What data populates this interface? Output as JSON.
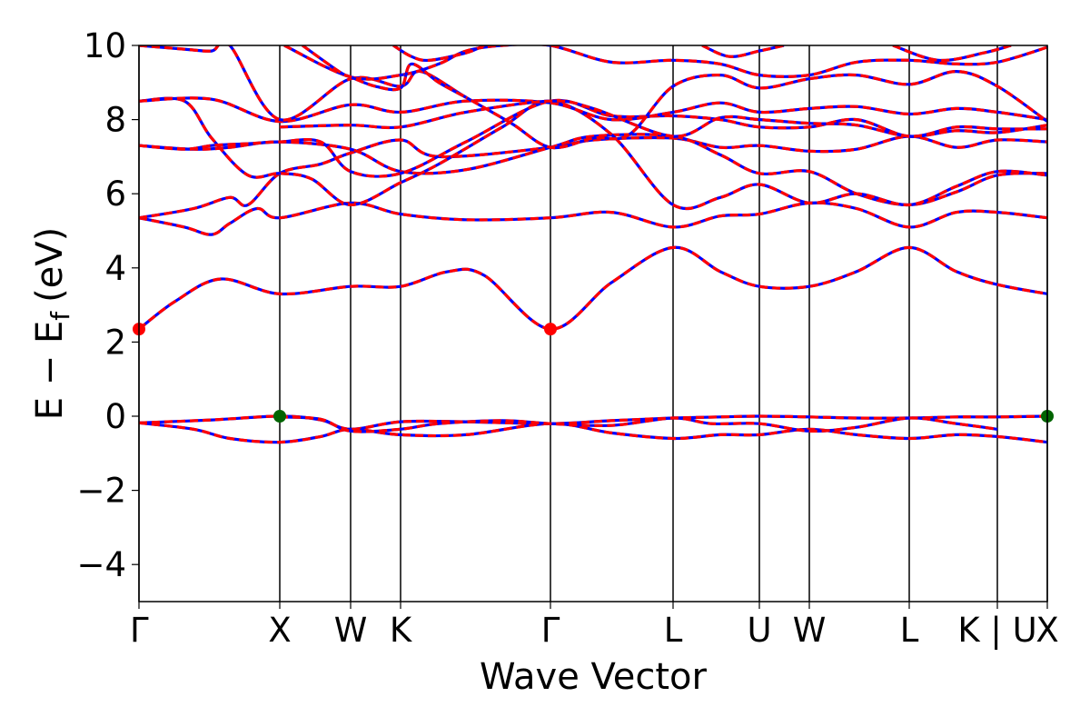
{
  "chart_data": {
    "type": "line",
    "title": "",
    "xlabel": "Wave Vector",
    "ylabel": "E − E",
    "ylabel_subscript": "f",
    "ylabel_unit": "(eV)",
    "ylim": [
      -5,
      10
    ],
    "yticks": [
      -4,
      -2,
      0,
      2,
      4,
      6,
      8,
      10
    ],
    "ytick_labels": [
      "−4",
      "−2",
      "0",
      "2",
      "4",
      "6",
      "8",
      "10"
    ],
    "x_range": [
      0,
      1
    ],
    "kpoints": [
      {
        "label": "Γ",
        "x": 0.0
      },
      {
        "label": "X",
        "x": 0.155
      },
      {
        "label": "W",
        "x": 0.233
      },
      {
        "label": "K",
        "x": 0.288
      },
      {
        "label": "Γ",
        "x": 0.453
      },
      {
        "label": "L",
        "x": 0.588
      },
      {
        "label": "U",
        "x": 0.683
      },
      {
        "label": "W",
        "x": 0.738
      },
      {
        "label": "L",
        "x": 0.848
      },
      {
        "label": "K | U",
        "x": 0.945
      },
      {
        "label": "X",
        "x": 1.0
      }
    ],
    "grid": false,
    "colors": {
      "band_primary": "#ff0000",
      "band_overlay": "#0000ff",
      "cbm": "#ff0000",
      "vbm": "#006400",
      "kline": "#000000"
    },
    "series": [
      {
        "points": [
          [
            0,
            -0.18
          ],
          [
            0.08,
            -0.1
          ],
          [
            0.155,
            0.0
          ],
          [
            0.2,
            -0.1
          ],
          [
            0.233,
            -0.35
          ],
          [
            0.288,
            -0.15
          ],
          [
            0.36,
            -0.15
          ],
          [
            0.453,
            -0.2
          ],
          [
            0.52,
            -0.12
          ],
          [
            0.588,
            -0.05
          ],
          [
            0.64,
            -0.02
          ],
          [
            0.683,
            0.0
          ],
          [
            0.738,
            -0.02
          ],
          [
            0.79,
            -0.05
          ],
          [
            0.848,
            -0.05
          ],
          [
            0.9,
            -0.02
          ],
          [
            0.945,
            -0.02
          ],
          [
            1.0,
            0.0
          ]
        ]
      },
      {
        "points": [
          [
            0,
            -0.18
          ],
          [
            0.06,
            -0.35
          ],
          [
            0.1,
            -0.6
          ],
          [
            0.155,
            -0.7
          ],
          [
            0.2,
            -0.55
          ],
          [
            0.233,
            -0.35
          ],
          [
            0.288,
            -0.5
          ],
          [
            0.36,
            -0.5
          ],
          [
            0.453,
            -0.2
          ],
          [
            0.52,
            -0.45
          ],
          [
            0.588,
            -0.6
          ],
          [
            0.64,
            -0.5
          ],
          [
            0.683,
            -0.5
          ],
          [
            0.738,
            -0.35
          ],
          [
            0.79,
            -0.5
          ],
          [
            0.848,
            -0.6
          ],
          [
            0.9,
            -0.5
          ],
          [
            0.945,
            -0.55
          ],
          [
            1.0,
            -0.7
          ]
        ]
      },
      {
        "points": [
          [
            0.155,
            -0.02
          ],
          [
            0.2,
            -0.08
          ],
          [
            0.233,
            -0.4
          ],
          [
            0.288,
            -0.35
          ],
          [
            0.33,
            -0.2
          ],
          [
            0.4,
            -0.12
          ],
          [
            0.453,
            -0.2
          ],
          [
            0.52,
            -0.25
          ],
          [
            0.588,
            -0.05
          ],
          [
            0.63,
            -0.2
          ],
          [
            0.683,
            -0.2
          ],
          [
            0.738,
            -0.4
          ],
          [
            0.79,
            -0.3
          ],
          [
            0.848,
            -0.05
          ],
          [
            0.9,
            -0.2
          ],
          [
            0.945,
            -0.35
          ]
        ]
      },
      {
        "points": [
          [
            0,
            2.35
          ],
          [
            0.04,
            3.1
          ],
          [
            0.09,
            3.7
          ],
          [
            0.155,
            3.3
          ],
          [
            0.233,
            3.5
          ],
          [
            0.288,
            3.5
          ],
          [
            0.34,
            3.9
          ],
          [
            0.38,
            3.8
          ],
          [
            0.453,
            2.35
          ],
          [
            0.52,
            3.6
          ],
          [
            0.588,
            4.55
          ],
          [
            0.64,
            3.9
          ],
          [
            0.683,
            3.5
          ],
          [
            0.738,
            3.5
          ],
          [
            0.79,
            3.9
          ],
          [
            0.848,
            4.55
          ],
          [
            0.9,
            3.9
          ],
          [
            0.945,
            3.55
          ],
          [
            1.0,
            3.3
          ]
        ]
      },
      {
        "points": [
          [
            0,
            5.35
          ],
          [
            0.05,
            5.1
          ],
          [
            0.08,
            4.9
          ],
          [
            0.1,
            5.2
          ],
          [
            0.13,
            5.6
          ],
          [
            0.155,
            5.35
          ],
          [
            0.233,
            5.75
          ],
          [
            0.288,
            5.45
          ],
          [
            0.36,
            5.3
          ],
          [
            0.453,
            5.35
          ],
          [
            0.52,
            5.5
          ],
          [
            0.588,
            5.1
          ],
          [
            0.64,
            5.4
          ],
          [
            0.683,
            5.45
          ],
          [
            0.738,
            5.75
          ],
          [
            0.79,
            5.6
          ],
          [
            0.848,
            5.1
          ],
          [
            0.9,
            5.5
          ],
          [
            0.945,
            5.5
          ],
          [
            1.0,
            5.35
          ]
        ]
      },
      {
        "points": [
          [
            0,
            5.35
          ],
          [
            0.06,
            5.6
          ],
          [
            0.1,
            5.9
          ],
          [
            0.12,
            5.7
          ],
          [
            0.155,
            6.55
          ],
          [
            0.2,
            6.8
          ],
          [
            0.233,
            7.1
          ],
          [
            0.288,
            7.45
          ],
          [
            0.33,
            7.0
          ],
          [
            0.453,
            7.25
          ],
          [
            0.5,
            7.45
          ],
          [
            0.588,
            7.5
          ],
          [
            0.64,
            7.25
          ],
          [
            0.683,
            7.3
          ],
          [
            0.738,
            7.15
          ],
          [
            0.79,
            7.2
          ],
          [
            0.848,
            7.55
          ],
          [
            0.9,
            7.25
          ],
          [
            0.945,
            7.45
          ],
          [
            1.0,
            7.4
          ]
        ]
      },
      {
        "points": [
          [
            0,
            7.3
          ],
          [
            0.06,
            7.2
          ],
          [
            0.1,
            7.25
          ],
          [
            0.155,
            7.4
          ],
          [
            0.233,
            7.2
          ],
          [
            0.288,
            6.6
          ],
          [
            0.36,
            6.65
          ],
          [
            0.453,
            7.25
          ],
          [
            0.5,
            7.55
          ],
          [
            0.588,
            7.55
          ],
          [
            0.64,
            7.05
          ],
          [
            0.683,
            6.55
          ],
          [
            0.738,
            6.6
          ],
          [
            0.79,
            6.0
          ],
          [
            0.848,
            5.7
          ],
          [
            0.9,
            6.05
          ],
          [
            0.945,
            6.5
          ],
          [
            1.0,
            6.55
          ]
        ]
      },
      {
        "points": [
          [
            0,
            8.5
          ],
          [
            0.05,
            8.5
          ],
          [
            0.08,
            7.5
          ],
          [
            0.12,
            6.5
          ],
          [
            0.155,
            6.55
          ],
          [
            0.19,
            6.4
          ],
          [
            0.233,
            5.7
          ],
          [
            0.288,
            6.3
          ],
          [
            0.33,
            6.8
          ],
          [
            0.4,
            7.8
          ],
          [
            0.453,
            8.5
          ],
          [
            0.52,
            7.6
          ],
          [
            0.588,
            5.7
          ],
          [
            0.64,
            5.9
          ],
          [
            0.683,
            6.25
          ],
          [
            0.738,
            5.75
          ],
          [
            0.79,
            6.0
          ],
          [
            0.848,
            5.7
          ],
          [
            0.9,
            6.2
          ],
          [
            0.945,
            6.6
          ],
          [
            1.0,
            6.5
          ]
        ]
      },
      {
        "points": [
          [
            0,
            7.3
          ],
          [
            0.05,
            7.2
          ],
          [
            0.08,
            7.3
          ],
          [
            0.12,
            7.35
          ],
          [
            0.155,
            7.4
          ],
          [
            0.2,
            7.4
          ],
          [
            0.233,
            6.6
          ],
          [
            0.288,
            6.55
          ],
          [
            0.36,
            7.4
          ],
          [
            0.453,
            8.5
          ],
          [
            0.52,
            8.1
          ],
          [
            0.588,
            8.1
          ],
          [
            0.64,
            8.0
          ],
          [
            0.683,
            7.8
          ],
          [
            0.738,
            7.8
          ],
          [
            0.79,
            8.0
          ],
          [
            0.848,
            7.55
          ],
          [
            0.9,
            7.8
          ],
          [
            0.945,
            7.75
          ],
          [
            1.0,
            7.75
          ]
        ]
      },
      {
        "points": [
          [
            0,
            8.5
          ],
          [
            0.08,
            8.55
          ],
          [
            0.155,
            7.95
          ],
          [
            0.233,
            8.4
          ],
          [
            0.288,
            8.2
          ],
          [
            0.36,
            8.5
          ],
          [
            0.453,
            8.45
          ],
          [
            0.52,
            8.0
          ],
          [
            0.588,
            8.2
          ],
          [
            0.64,
            8.45
          ],
          [
            0.683,
            8.2
          ],
          [
            0.738,
            8.3
          ],
          [
            0.79,
            8.35
          ],
          [
            0.848,
            8.15
          ],
          [
            0.9,
            8.3
          ],
          [
            0.945,
            8.2
          ],
          [
            1.0,
            8.0
          ]
        ]
      },
      {
        "points": [
          [
            0.155,
            7.8
          ],
          [
            0.233,
            7.85
          ],
          [
            0.288,
            7.8
          ],
          [
            0.36,
            8.2
          ],
          [
            0.453,
            8.5
          ],
          [
            0.5,
            8.3
          ],
          [
            0.588,
            7.55
          ],
          [
            0.64,
            8.05
          ],
          [
            0.683,
            8.0
          ],
          [
            0.738,
            7.9
          ],
          [
            0.79,
            7.85
          ],
          [
            0.848,
            7.55
          ],
          [
            0.9,
            7.7
          ],
          [
            0.945,
            7.65
          ],
          [
            1.0,
            7.85
          ]
        ]
      },
      {
        "points": [
          [
            0,
            10.0
          ],
          [
            0.05,
            9.9
          ],
          [
            0.08,
            9.85
          ],
          [
            0.1,
            10.0
          ],
          [
            0.155,
            8.0
          ],
          [
            0.233,
            9.1
          ],
          [
            0.288,
            8.9
          ],
          [
            0.31,
            9.3
          ],
          [
            0.36,
            8.6
          ],
          [
            0.41,
            7.9
          ],
          [
            0.453,
            7.25
          ],
          [
            0.5,
            7.5
          ],
          [
            0.54,
            7.6
          ],
          [
            0.588,
            8.9
          ],
          [
            0.64,
            9.2
          ],
          [
            0.683,
            8.85
          ],
          [
            0.738,
            9.1
          ],
          [
            0.79,
            9.2
          ],
          [
            0.848,
            8.95
          ],
          [
            0.9,
            9.3
          ],
          [
            0.945,
            8.9
          ],
          [
            1.0,
            7.95
          ]
        ]
      },
      {
        "points": [
          [
            0.16,
            10.0
          ],
          [
            0.233,
            9.15
          ],
          [
            0.288,
            9.2
          ],
          [
            0.33,
            9.5
          ],
          [
            0.36,
            9.85
          ],
          [
            0.4,
            10.0
          ],
          [
            0.453,
            10.0
          ],
          [
            0.52,
            9.55
          ],
          [
            0.588,
            9.6
          ],
          [
            0.64,
            9.5
          ],
          [
            0.683,
            9.2
          ],
          [
            0.738,
            9.2
          ],
          [
            0.79,
            9.55
          ],
          [
            0.848,
            9.6
          ],
          [
            0.9,
            9.5
          ],
          [
            0.945,
            9.55
          ],
          [
            1.0,
            9.95
          ]
        ]
      },
      {
        "points": [
          [
            0.18,
            10.0
          ],
          [
            0.22,
            9.3
          ],
          [
            0.233,
            9.15
          ],
          [
            0.26,
            8.9
          ],
          [
            0.288,
            8.85
          ],
          [
            0.3,
            9.5
          ],
          [
            0.33,
            9.0
          ],
          [
            0.36,
            8.6
          ]
        ]
      },
      {
        "points": [
          [
            0.28,
            10.0
          ],
          [
            0.3,
            9.7
          ],
          [
            0.32,
            9.6
          ],
          [
            0.36,
            9.8
          ],
          [
            0.38,
            10.0
          ]
        ]
      },
      {
        "points": [
          [
            0.62,
            10.0
          ],
          [
            0.65,
            9.7
          ],
          [
            0.683,
            9.85
          ],
          [
            0.71,
            10.0
          ]
        ]
      },
      {
        "points": [
          [
            0.83,
            10.0
          ],
          [
            0.88,
            9.6
          ],
          [
            0.93,
            9.8
          ],
          [
            0.96,
            10.0
          ]
        ]
      }
    ],
    "markers": [
      {
        "type": "cbm",
        "x": 0.0,
        "y": 2.35
      },
      {
        "type": "cbm",
        "x": 0.453,
        "y": 2.35
      },
      {
        "type": "vbm",
        "x": 0.155,
        "y": 0.0
      },
      {
        "type": "vbm",
        "x": 1.0,
        "y": 0.0
      }
    ]
  }
}
